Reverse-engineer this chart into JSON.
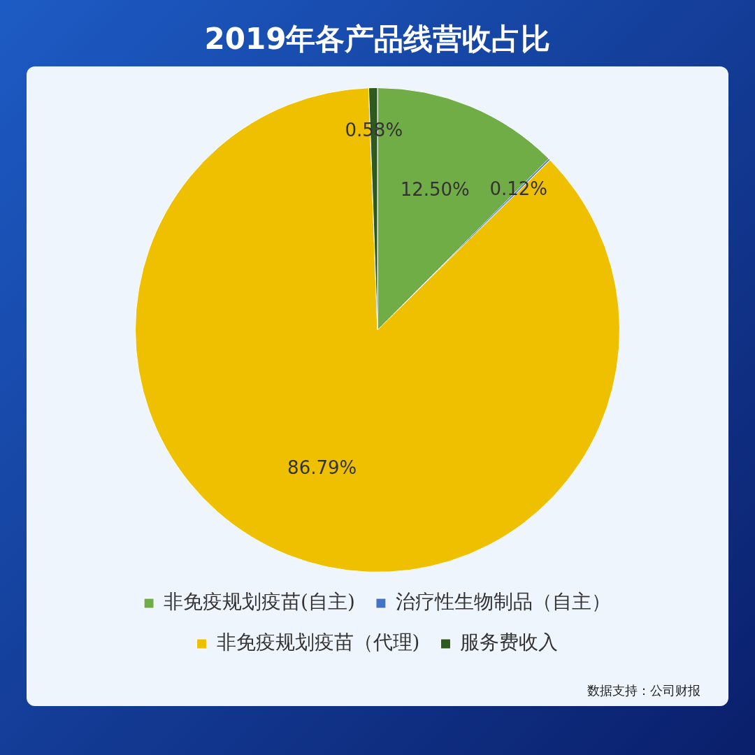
{
  "chart_data": {
    "type": "pie",
    "title": "2019年各产品线营收占比",
    "categories": [
      "非免疫规划疫苗(自主)",
      "治疗性生物制品（自主）",
      "非免疫规划疫苗（代理)",
      "服务费收入"
    ],
    "values": [
      12.5,
      0.12,
      86.79,
      0.58
    ],
    "colors": [
      "#70ad47",
      "#4472c4",
      "#eec000",
      "#2f5a1f"
    ],
    "value_labels": [
      "12.50%",
      "0.12%",
      "86.79%",
      "0.58%"
    ],
    "legend": "bottom",
    "annotations": [
      "数据支持：公司财报"
    ]
  }
}
